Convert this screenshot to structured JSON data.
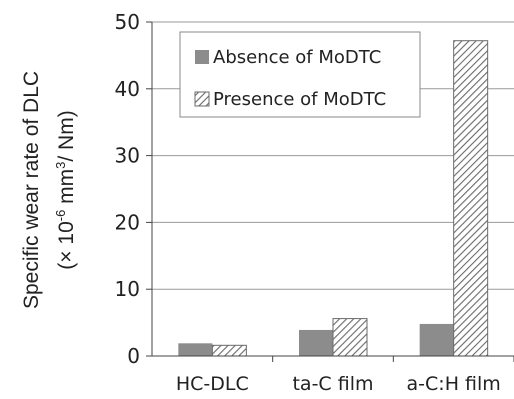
{
  "chart_data": {
    "type": "bar",
    "categories": [
      "HC-DLC",
      "ta-C film",
      "a-C:H film"
    ],
    "series": [
      {
        "name": "Absence of MoDTC",
        "values": [
          1.9,
          3.9,
          4.8
        ],
        "color": "#8c8c8c",
        "pattern": "solid"
      },
      {
        "name": "Presence of MoDTC",
        "values": [
          1.6,
          5.6,
          47.2
        ],
        "color": "#ffffff",
        "pattern": "diagonal-hatch"
      }
    ],
    "ylabel_line1": "Specific wear rate of DLC",
    "ylabel_line2_prefix": "(× 10",
    "ylabel_line2_exp1": "-6",
    "ylabel_line2_mid": " mm",
    "ylabel_line2_exp2": "3",
    "ylabel_line2_suffix": "/ Nm)",
    "ylim": [
      0,
      50
    ],
    "yticks": [
      0,
      10,
      20,
      30,
      40,
      50
    ],
    "ytick_labels": [
      "0",
      "10",
      "20",
      "30",
      "40",
      "50"
    ],
    "grid": true,
    "legend_position": "top-center"
  }
}
